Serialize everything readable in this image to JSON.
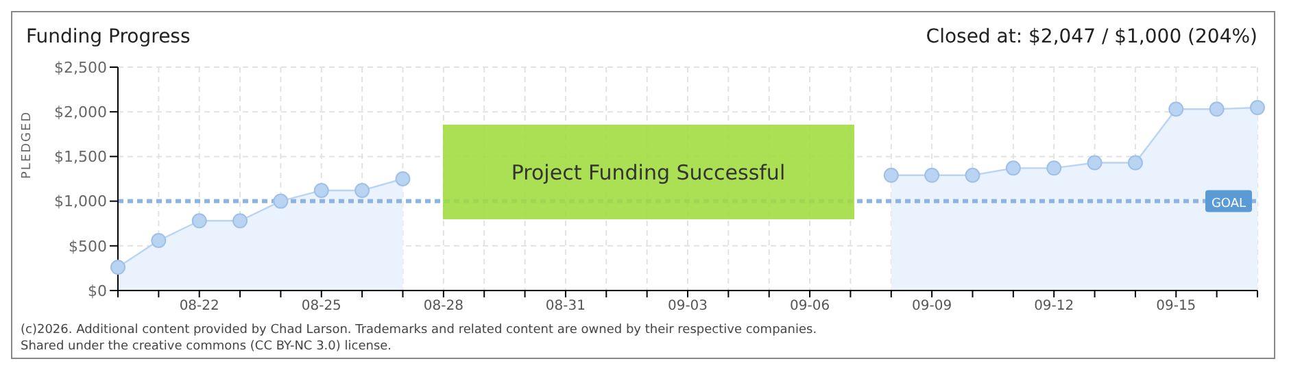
{
  "chart_data": {
    "type": "area",
    "title": "Funding Progress",
    "subtitle": "Closed at: $2,047 / $1,000 (204%)",
    "ylabel": "PLEDGED",
    "categories": [
      null,
      null,
      "08-22",
      null,
      null,
      "08-25",
      null,
      null,
      "08-28",
      null,
      null,
      "08-31",
      null,
      null,
      "09-03",
      null,
      null,
      "09-06",
      null,
      null,
      "09-09",
      null,
      null,
      "09-12",
      null,
      null,
      "09-15",
      null,
      null
    ],
    "series": [
      {
        "color": "#b8d4f2",
        "values": [
          260,
          560,
          780,
          780,
          1000,
          1120,
          1120,
          1250,
          null,
          null,
          null,
          null,
          null,
          null,
          null,
          null,
          null,
          null,
          null,
          1290,
          1290,
          1290,
          1370,
          1370,
          1430,
          1430,
          2030,
          2030,
          2047
        ]
      }
    ],
    "ylim": [
      0,
      2500
    ],
    "yticks": [
      {
        "value": 0,
        "label": "$0"
      },
      {
        "value": 500,
        "label": "$500"
      },
      {
        "value": 1000,
        "label": "$1,000"
      },
      {
        "value": 1500,
        "label": "$1,500"
      },
      {
        "value": 2000,
        "label": "$2,000"
      },
      {
        "value": 2500,
        "label": "$2,500"
      }
    ],
    "grid": true,
    "marker": "circle",
    "ref_lines": [
      {
        "axis": "y",
        "value": 1000,
        "label": "GOAL",
        "color": "#8fb3e0",
        "line_style": "dashed"
      }
    ],
    "annotations": [
      "Project Funding Successful",
      "(c)2026. Additional content provided by Chad Larson. Trademarks and related content are owned by their respective companies.",
      "Shared under the creative commons (CC BY-NC 3.0) license."
    ]
  }
}
